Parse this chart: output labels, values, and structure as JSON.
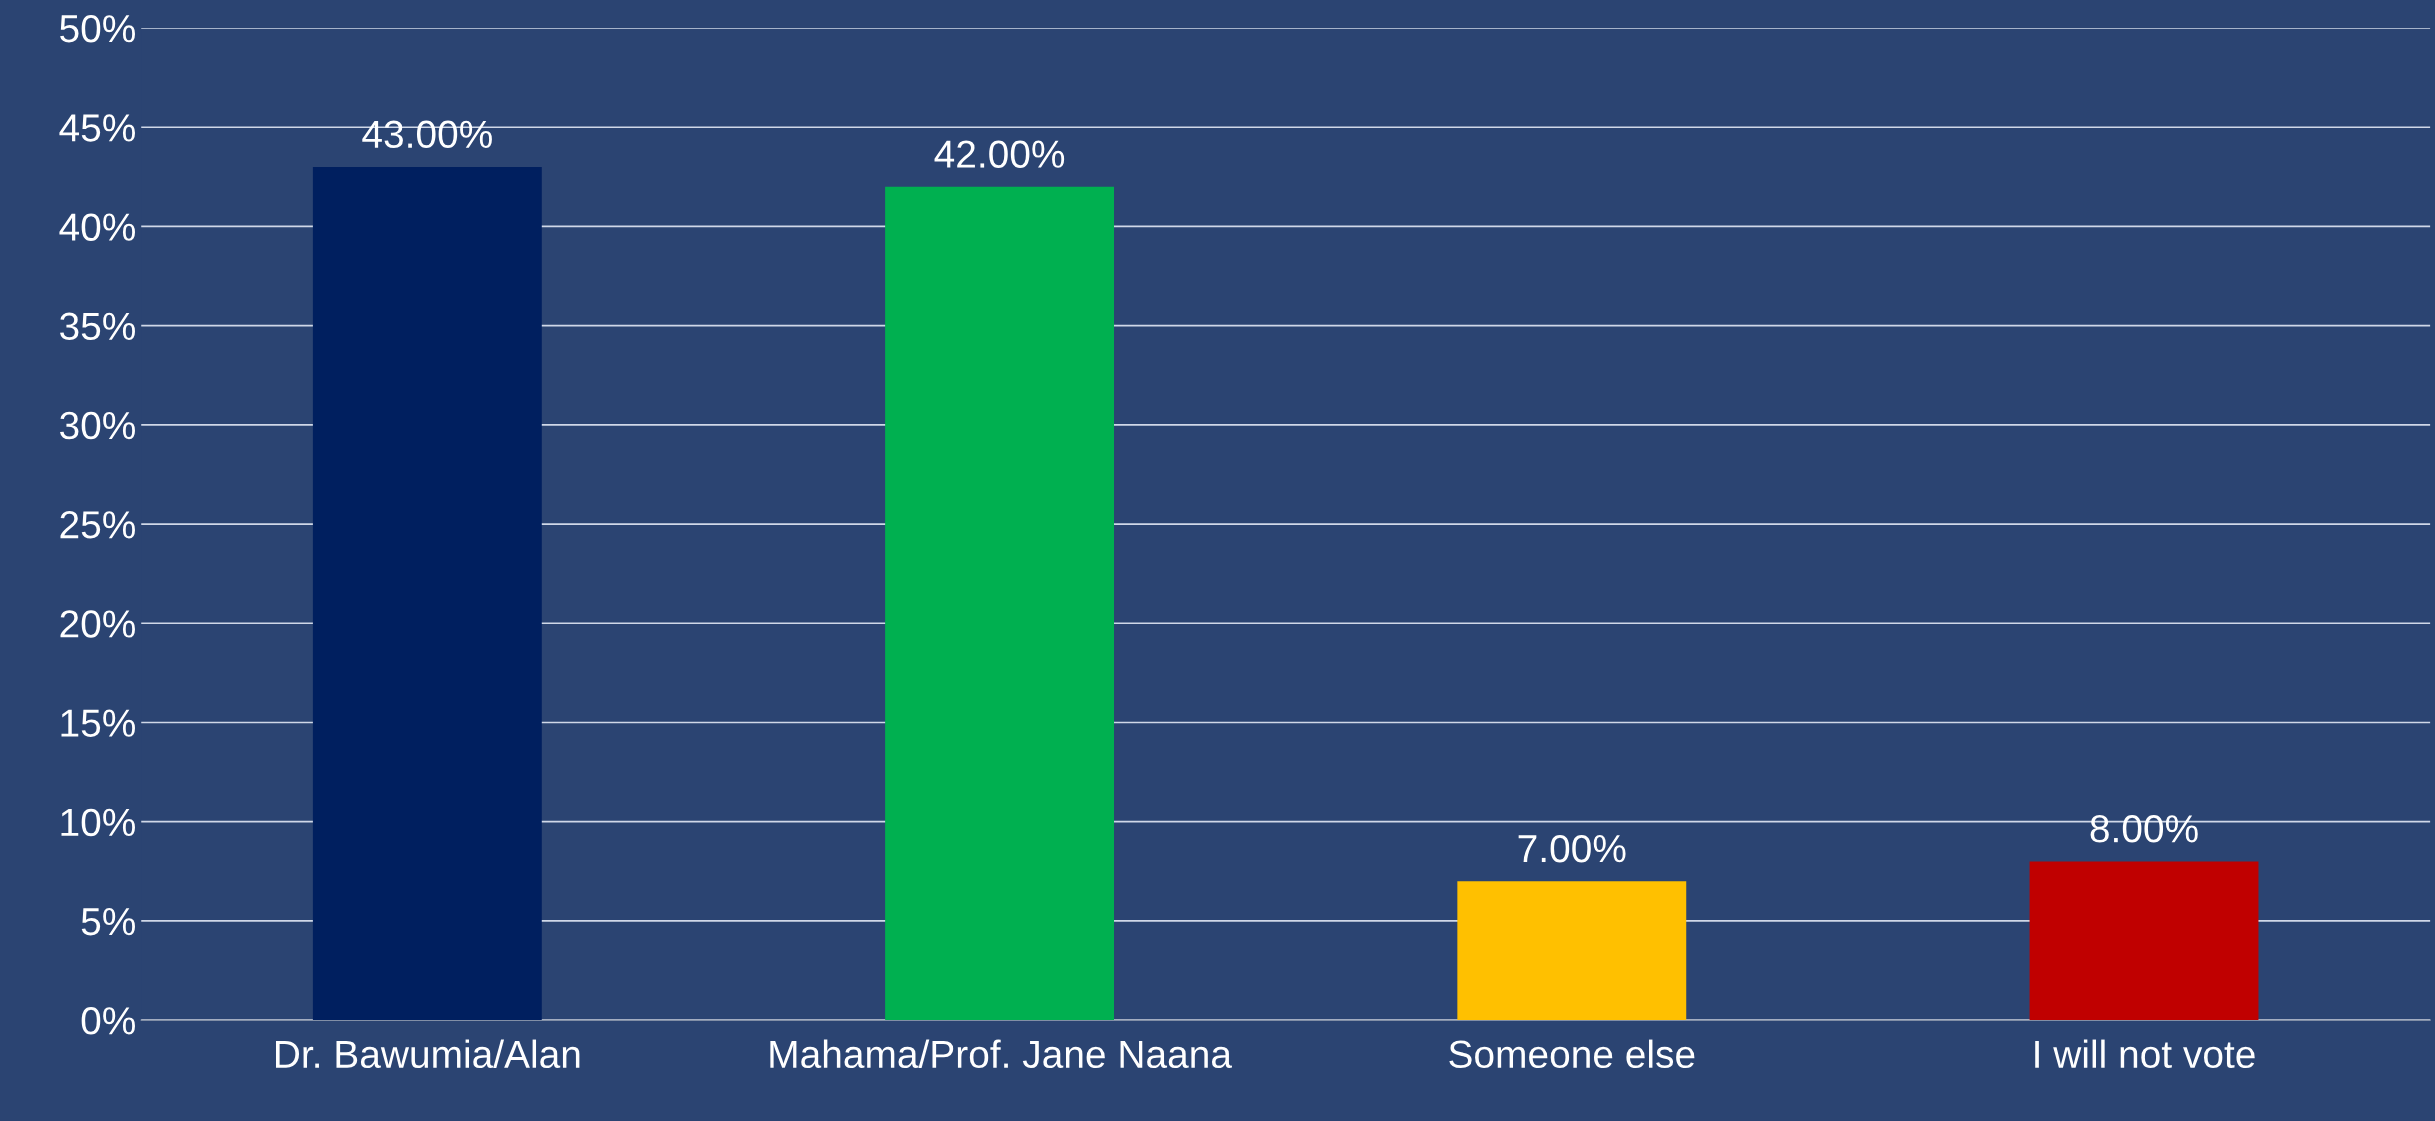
{
  "chart_data": {
    "type": "bar",
    "categories": [
      "Dr. Bawumia/Alan",
      "Mahama/Prof. Jane Naana",
      "Someone else",
      "I will not vote"
    ],
    "values": [
      43,
      42,
      7,
      8
    ],
    "colors": [
      "#001f5f",
      "#00b050",
      "#ffc000",
      "#c00000"
    ],
    "value_labels": [
      "43.00%",
      "42.00%",
      "7.00%",
      "8.00%"
    ],
    "ylim": [
      0,
      50
    ],
    "yticks": [
      {
        "value": 0,
        "label": "0%"
      },
      {
        "value": 5,
        "label": "5%"
      },
      {
        "value": 10,
        "label": "10%"
      },
      {
        "value": 15,
        "label": "15%"
      },
      {
        "value": 20,
        "label": "20%"
      },
      {
        "value": 25,
        "label": "25%"
      },
      {
        "value": 30,
        "label": "30%"
      },
      {
        "value": 35,
        "label": "35%"
      },
      {
        "value": 40,
        "label": "40%"
      },
      {
        "value": 45,
        "label": "45%"
      },
      {
        "value": 50,
        "label": "50%"
      }
    ],
    "grid": "y",
    "legend": false
  }
}
